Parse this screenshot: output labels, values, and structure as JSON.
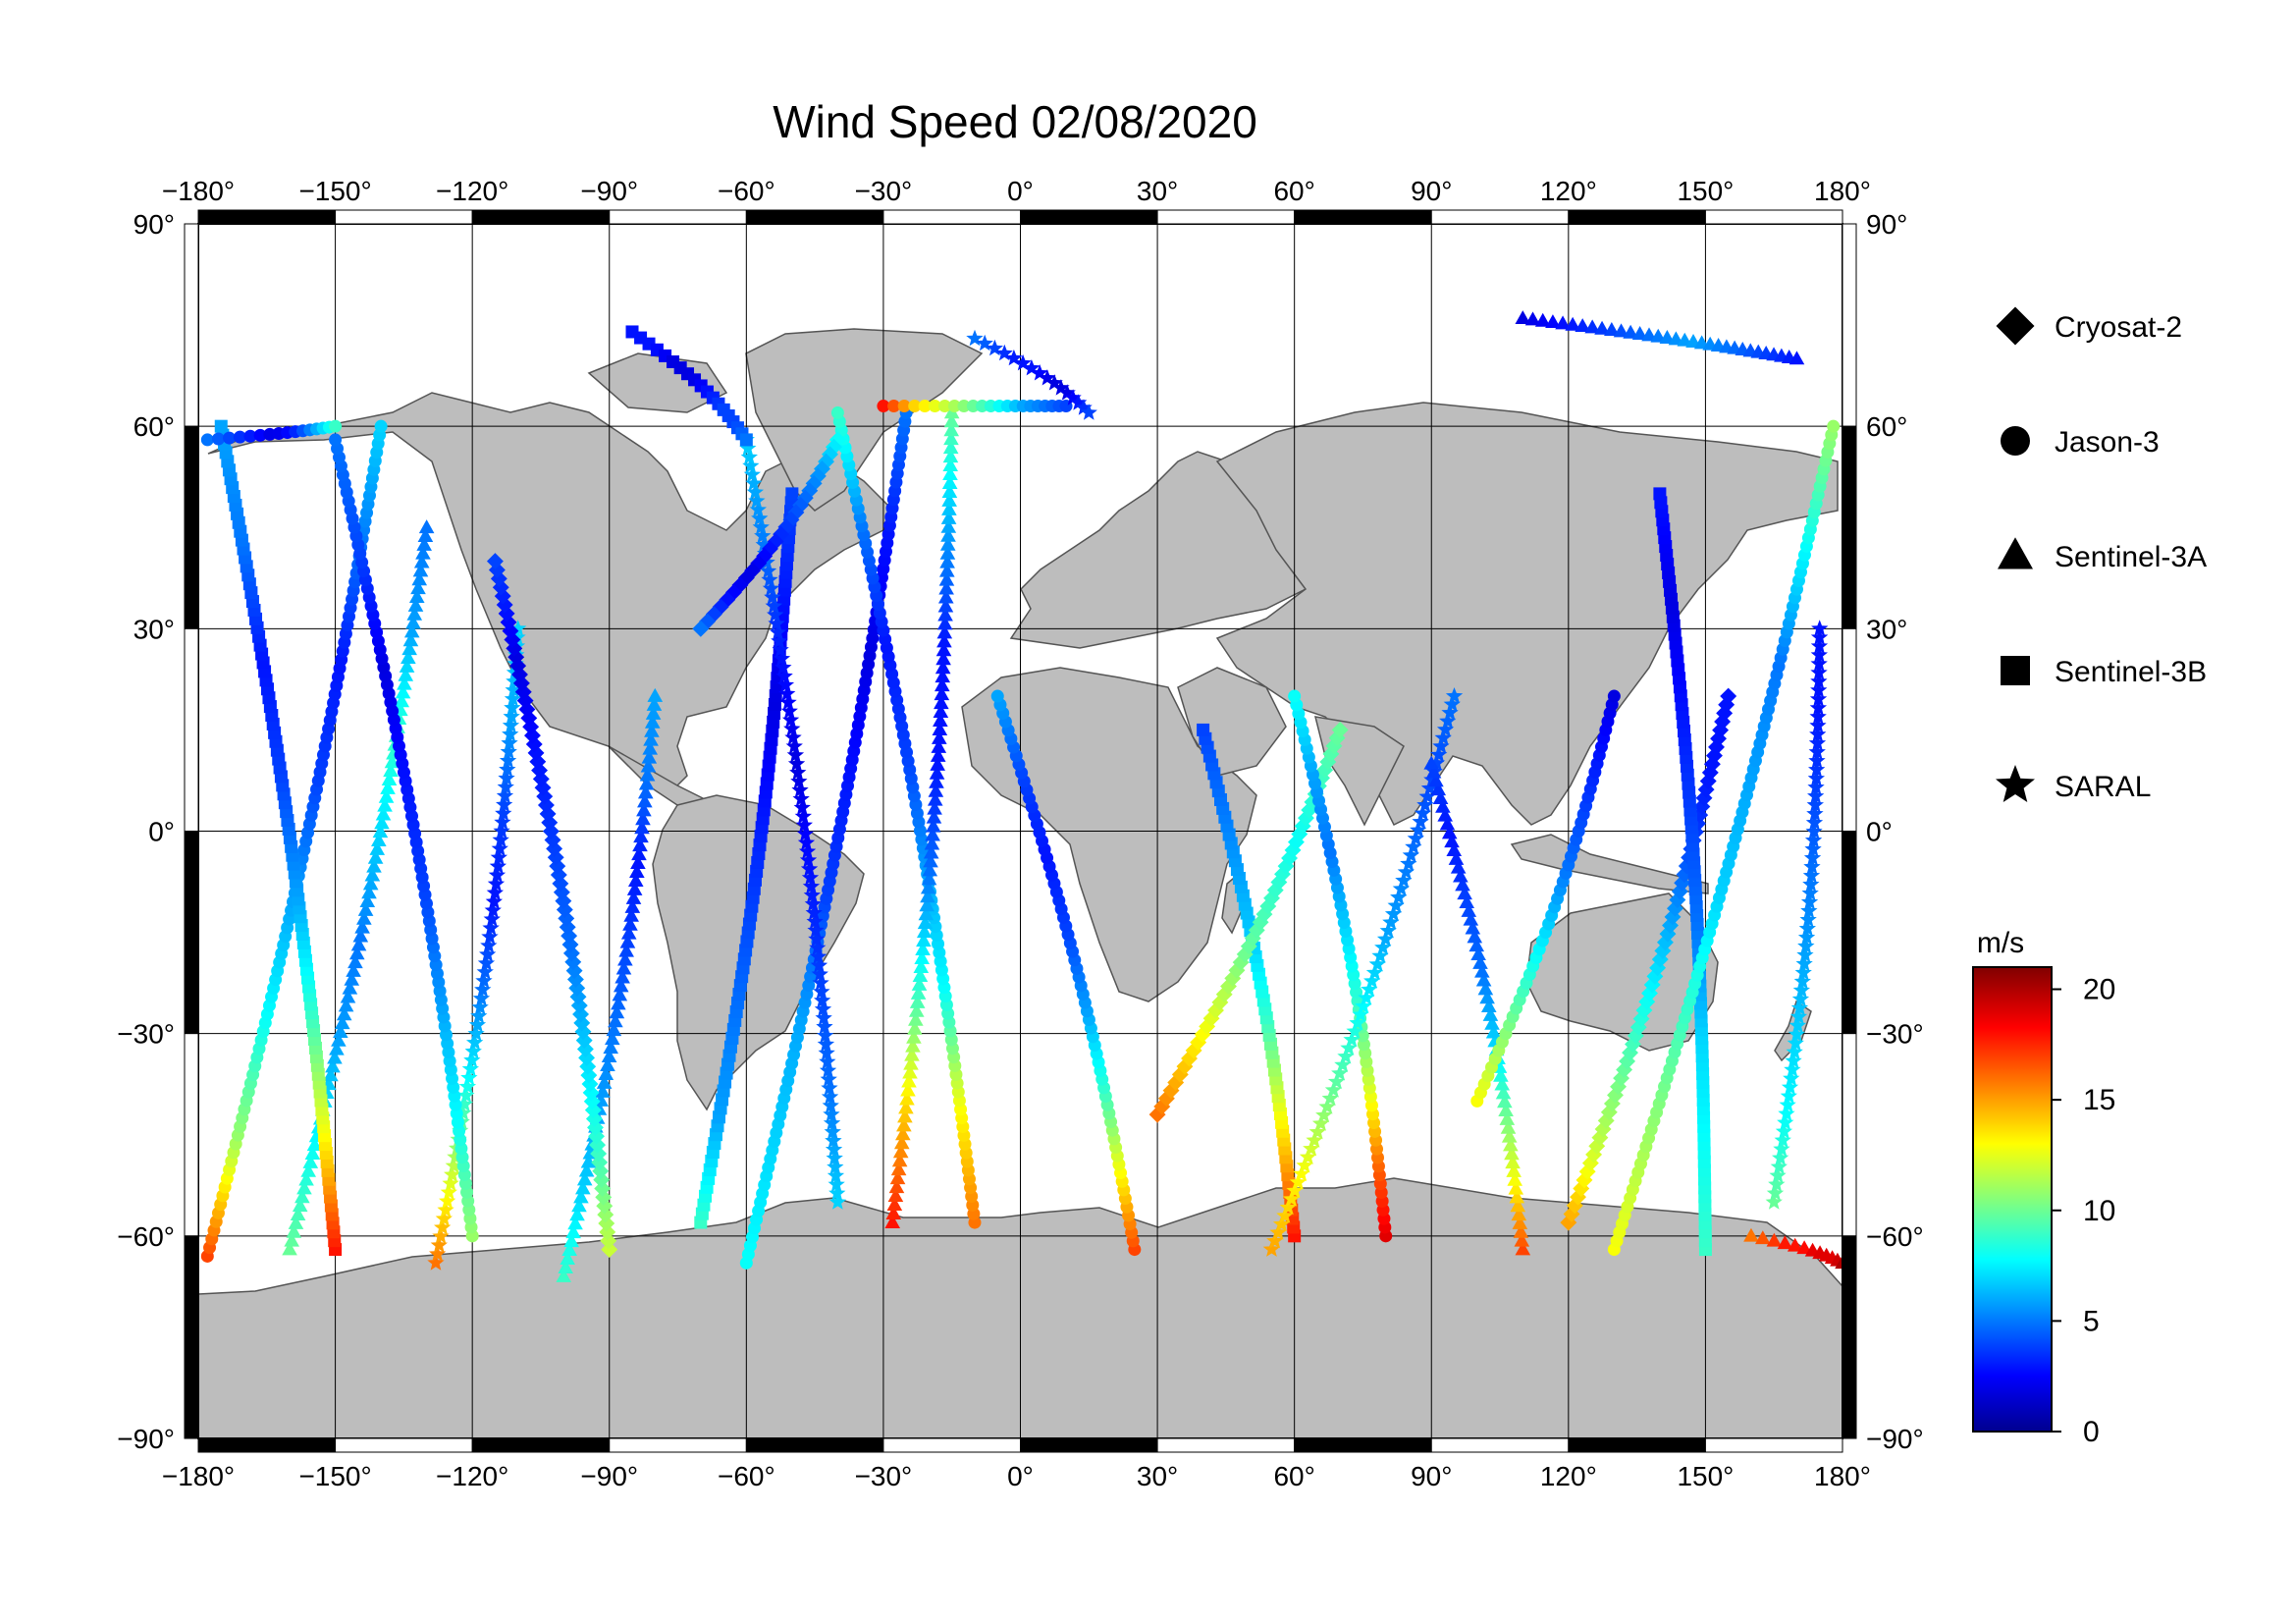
{
  "title": "Wind Speed 02/08/2020",
  "map": {
    "projection": "equirectangular",
    "lon_range": [
      -180,
      180
    ],
    "lat_range": [
      -90,
      90
    ],
    "lon_ticks": [
      -180,
      -150,
      -120,
      -90,
      -60,
      -30,
      0,
      30,
      60,
      90,
      120,
      150,
      180
    ],
    "lat_ticks": [
      90,
      60,
      30,
      0,
      -30,
      -60,
      -90
    ],
    "degree_symbol": "°",
    "grid": true,
    "land_color": "#bdbdbd",
    "ocean_color": "#ffffff"
  },
  "legend": {
    "placement": "right",
    "items": [
      {
        "label": "Cryosat-2",
        "marker": "diamond"
      },
      {
        "label": "Jason-3",
        "marker": "circle"
      },
      {
        "label": "Sentinel-3A",
        "marker": "triangle"
      },
      {
        "label": "Sentinel-3B",
        "marker": "square"
      },
      {
        "label": "SARAL",
        "marker": "star"
      }
    ]
  },
  "colorbar": {
    "title": "m/s",
    "range": [
      0,
      21
    ],
    "ticks": [
      0,
      5,
      10,
      15,
      20
    ],
    "colormap": "jet"
  },
  "chart_data": {
    "type": "scatter",
    "x_axis": "longitude",
    "y_axis": "latitude",
    "value": "wind speed (m/s)",
    "tracks": [
      {
        "satellite": "Jason-3",
        "from": [
          -178,
          -63
        ],
        "to": [
          -140,
          60
        ],
        "winds": [
          17,
          11,
          8,
          6,
          4,
          3,
          5,
          7
        ]
      },
      {
        "satellite": "Sentinel-3A",
        "from": [
          -160,
          -62
        ],
        "to": [
          -130,
          45
        ],
        "winds": [
          10,
          8,
          6,
          5,
          7,
          9,
          6,
          5
        ]
      },
      {
        "satellite": "Sentinel-3B",
        "from": [
          -150,
          -62
        ],
        "to": [
          -175,
          60
        ],
        "winds": [
          18,
          13,
          9,
          6,
          4,
          3,
          5,
          6
        ]
      },
      {
        "satellite": "SARAL",
        "from": [
          -128,
          -64
        ],
        "to": [
          -110,
          30
        ],
        "winds": [
          16,
          12,
          8,
          5,
          3,
          4,
          6,
          7
        ]
      },
      {
        "satellite": "Jason-3",
        "from": [
          -120,
          -60
        ],
        "to": [
          -150,
          58
        ],
        "winds": [
          11,
          8,
          6,
          4,
          3,
          2,
          4,
          5
        ]
      },
      {
        "satellite": "Sentinel-3A",
        "from": [
          -100,
          -66
        ],
        "to": [
          -80,
          20
        ],
        "winds": [
          9,
          7,
          6,
          5,
          4,
          3,
          5,
          6
        ]
      },
      {
        "satellite": "Cryosat-2",
        "from": [
          -90,
          -62
        ],
        "to": [
          -115,
          40
        ],
        "winds": [
          12,
          9,
          7,
          5,
          4,
          3,
          2,
          4
        ]
      },
      {
        "satellite": "Jason-3",
        "from": [
          -60,
          -64
        ],
        "to": [
          -25,
          62
        ],
        "winds": [
          8,
          7,
          6,
          4,
          3,
          2,
          3,
          5
        ]
      },
      {
        "satellite": "Sentinel-3B",
        "from": [
          -70,
          -58
        ],
        "to": [
          -50,
          50
        ],
        "winds": [
          9,
          6,
          5,
          4,
          3,
          2,
          3,
          4
        ]
      },
      {
        "satellite": "SARAL",
        "from": [
          -40,
          -55
        ],
        "to": [
          -60,
          58
        ],
        "winds": [
          7,
          5,
          4,
          3,
          2,
          3,
          5,
          7
        ]
      },
      {
        "satellite": "Jason-3",
        "from": [
          -10,
          -58
        ],
        "to": [
          -40,
          62
        ],
        "winds": [
          16,
          13,
          8,
          6,
          4,
          3,
          5,
          9
        ]
      },
      {
        "satellite": "Sentinel-3A",
        "from": [
          -28,
          -58
        ],
        "to": [
          -15,
          62
        ],
        "winds": [
          18,
          14,
          9,
          5,
          3,
          3,
          6,
          10
        ]
      },
      {
        "satellite": "Jason-3",
        "from": [
          25,
          -62
        ],
        "to": [
          -5,
          20
        ],
        "winds": [
          17,
          13,
          9,
          6,
          4,
          3,
          4,
          6
        ]
      },
      {
        "satellite": "Sentinel-3B",
        "from": [
          60,
          -60
        ],
        "to": [
          40,
          15
        ],
        "winds": [
          18,
          15,
          12,
          9,
          7,
          6,
          5,
          4
        ]
      },
      {
        "satellite": "Cryosat-2",
        "from": [
          30,
          -42
        ],
        "to": [
          70,
          15
        ],
        "winds": [
          16,
          14,
          12,
          10,
          9,
          8,
          9,
          10
        ]
      },
      {
        "satellite": "Jason-3",
        "from": [
          80,
          -60
        ],
        "to": [
          60,
          20
        ],
        "winds": [
          19,
          16,
          12,
          9,
          7,
          5,
          6,
          8
        ]
      },
      {
        "satellite": "SARAL",
        "from": [
          55,
          -62
        ],
        "to": [
          95,
          20
        ],
        "winds": [
          15,
          13,
          10,
          8,
          6,
          5,
          4,
          5
        ]
      },
      {
        "satellite": "Sentinel-3A",
        "from": [
          110,
          -62
        ],
        "to": [
          90,
          10
        ],
        "winds": [
          17,
          13,
          10,
          7,
          5,
          4,
          3,
          4
        ]
      },
      {
        "satellite": "Jason-3",
        "from": [
          100,
          -40
        ],
        "to": [
          130,
          20
        ],
        "winds": [
          13,
          11,
          9,
          7,
          5,
          4,
          3,
          2
        ]
      },
      {
        "satellite": "Cryosat-2",
        "from": [
          120,
          -58
        ],
        "to": [
          155,
          20
        ],
        "winds": [
          15,
          12,
          10,
          8,
          6,
          4,
          3,
          3
        ]
      },
      {
        "satellite": "Sentinel-3B",
        "from": [
          150,
          -62
        ],
        "to": [
          140,
          50
        ],
        "winds": [
          9,
          8,
          7,
          5,
          4,
          3,
          2,
          3
        ]
      },
      {
        "satellite": "Jason-3",
        "from": [
          130,
          -62
        ],
        "to": [
          178,
          60
        ],
        "winds": [
          13,
          11,
          9,
          7,
          6,
          5,
          8,
          11
        ]
      },
      {
        "satellite": "SARAL",
        "from": [
          165,
          -55
        ],
        "to": [
          175,
          30
        ],
        "winds": [
          10,
          8,
          7,
          6,
          5,
          4,
          3,
          3
        ]
      },
      {
        "satellite": "Sentinel-3A",
        "from": [
          160,
          -60
        ],
        "to": [
          180,
          -64
        ],
        "winds": [
          16,
          17,
          18,
          18,
          19,
          19,
          19,
          20
        ]
      },
      {
        "satellite": "Jason-3",
        "from": [
          -30,
          63
        ],
        "to": [
          10,
          63
        ],
        "winds": [
          18,
          14,
          12,
          10,
          8,
          6,
          5,
          4
        ]
      },
      {
        "satellite": "Cryosat-2",
        "from": [
          -40,
          58
        ],
        "to": [
          -70,
          30
        ],
        "winds": [
          8,
          6,
          5,
          4,
          3,
          2,
          3,
          5
        ]
      },
      {
        "satellite": "SARAL",
        "from": [
          -10,
          73
        ],
        "to": [
          15,
          62
        ],
        "winds": [
          5,
          4,
          3,
          3,
          2,
          2,
          3,
          4
        ]
      },
      {
        "satellite": "Sentinel-3A",
        "from": [
          110,
          76
        ],
        "to": [
          170,
          70
        ],
        "winds": [
          2,
          3,
          4,
          5,
          6,
          5,
          4,
          3
        ]
      },
      {
        "satellite": "Sentinel-3B",
        "from": [
          -85,
          74
        ],
        "to": [
          -60,
          58
        ],
        "winds": [
          3,
          3,
          2,
          2,
          3,
          4,
          4,
          5
        ]
      },
      {
        "satellite": "Jason-3",
        "from": [
          -178,
          58
        ],
        "to": [
          -150,
          60
        ],
        "winds": [
          5,
          4,
          3,
          2,
          3,
          5,
          7,
          9
        ]
      }
    ]
  }
}
